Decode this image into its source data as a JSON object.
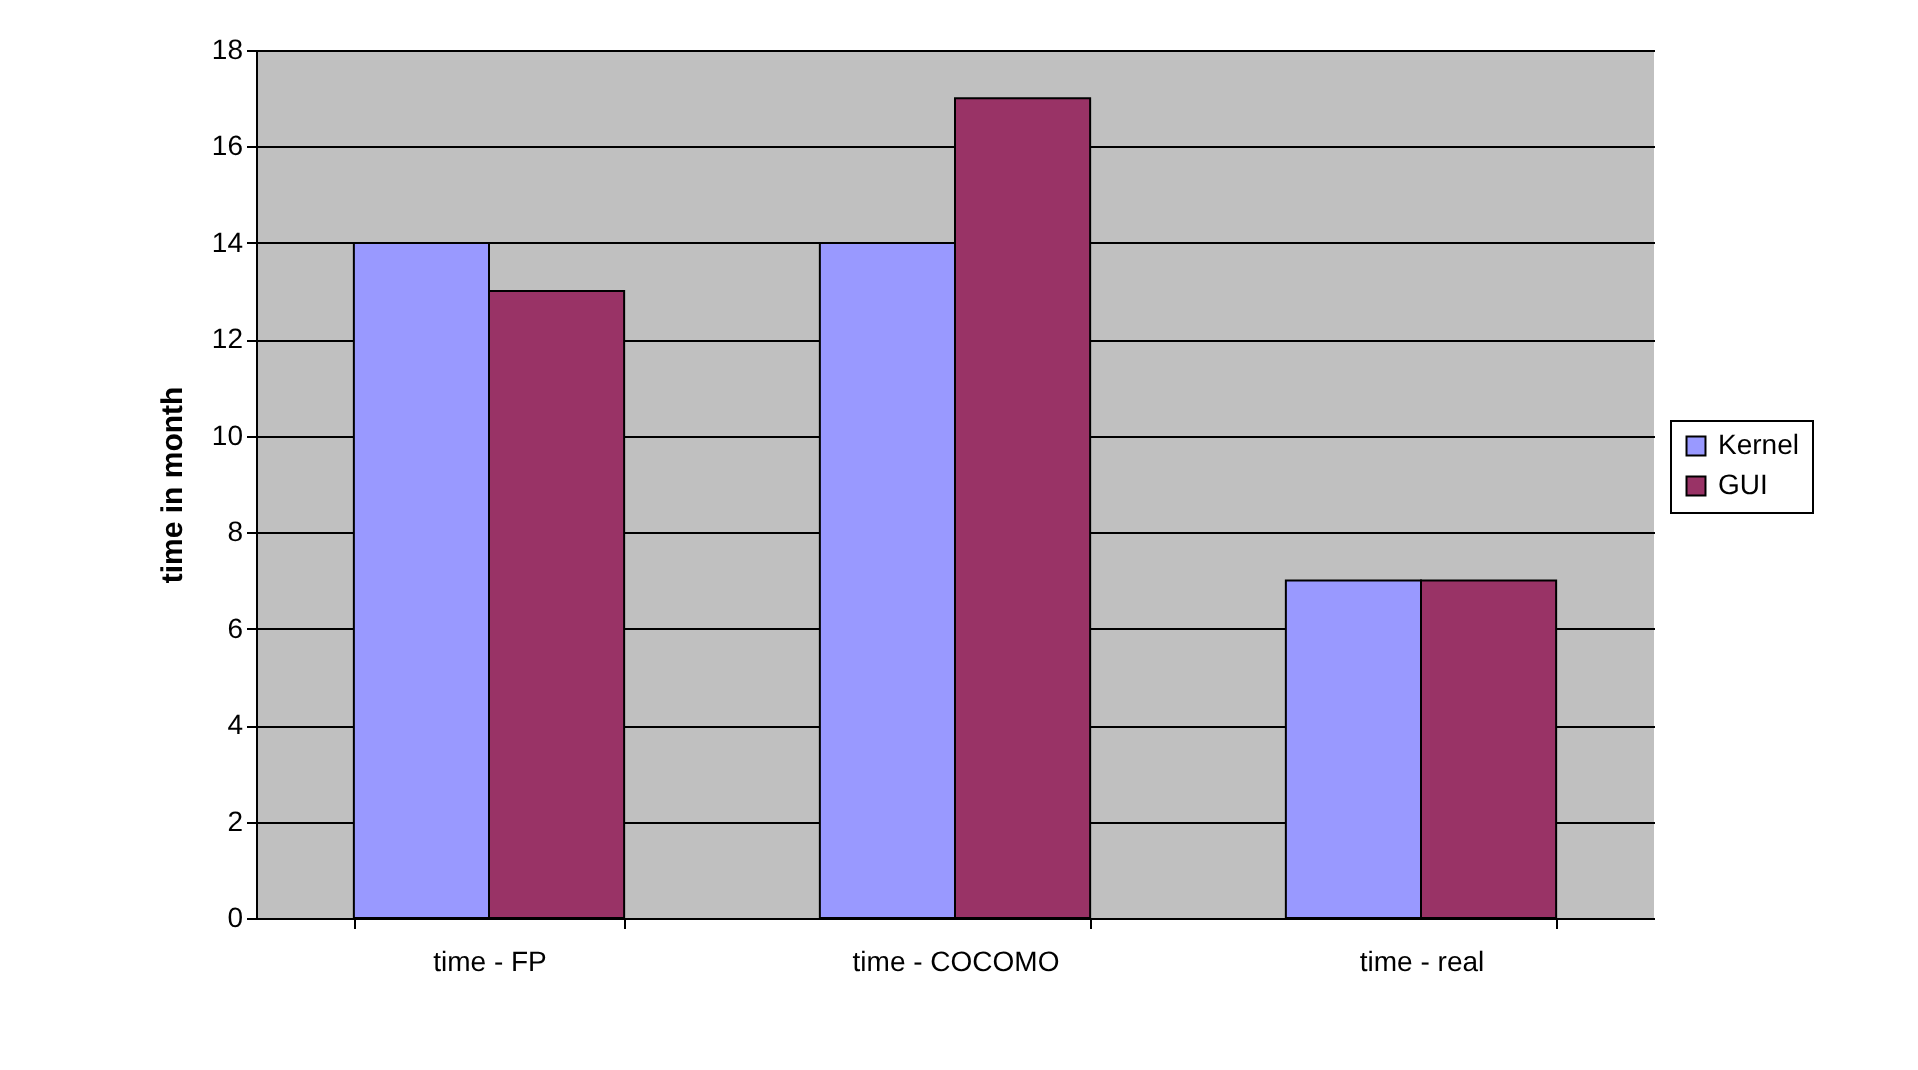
{
  "chart_data": {
    "type": "bar",
    "ylabel": "time in month",
    "categories": [
      "time - FP",
      "time - COCOMO",
      "time - real"
    ],
    "series": [
      {
        "name": "Kernel",
        "color": "#9999ff",
        "values": [
          14,
          14,
          7
        ]
      },
      {
        "name": "GUI",
        "color": "#993366",
        "values": [
          13,
          17,
          7
        ]
      }
    ],
    "ylim": [
      0,
      18
    ],
    "yticks": [
      0,
      2,
      4,
      6,
      8,
      10,
      12,
      14,
      16,
      18
    ],
    "grid": "y",
    "legend": "right"
  }
}
